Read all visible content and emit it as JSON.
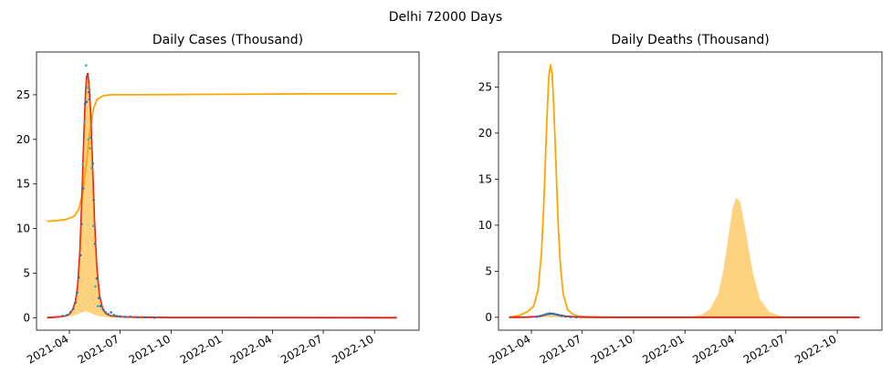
{
  "figure": {
    "suptitle": "Delhi 72000 Days"
  },
  "colors": {
    "orange": "#ffa500",
    "fill": "#ffa500",
    "red": "#ee1111",
    "blue": "#1f77b4",
    "cyan": "#17becf",
    "axes": "#000000"
  },
  "chart_data": [
    {
      "type": "line",
      "title": "Daily Cases (Thousand)",
      "xlabel": "",
      "ylabel": "",
      "xlim": [
        "2021-02-01",
        "2022-12-20"
      ],
      "ylim": [
        -1.4,
        29.8
      ],
      "x_ticks": [
        "2021-04-01",
        "2021-07-01",
        "2021-10-01",
        "2022-01-01",
        "2022-04-01",
        "2022-07-01",
        "2022-10-01"
      ],
      "x_tick_labels": [
        "2021-04",
        "2021-07",
        "2021-10",
        "2022-01",
        "2022-04",
        "2022-07",
        "2022-10"
      ],
      "y_ticks": [
        0,
        5,
        10,
        15,
        20,
        25
      ],
      "y_tick_labels": [
        "0",
        "5",
        "10",
        "15",
        "20",
        "25"
      ],
      "grid": false,
      "legend": "none",
      "series": [
        {
          "style": "line",
          "color": "orange",
          "x": [
            "2021-02-20",
            "2021-03-10",
            "2021-03-25",
            "2021-04-10",
            "2021-04-18",
            "2021-04-25",
            "2021-05-01",
            "2021-05-07",
            "2021-05-14",
            "2021-05-21",
            "2021-06-01",
            "2021-06-15",
            "2021-07-01",
            "2021-08-01",
            "2022-01-01",
            "2022-06-01",
            "2022-11-10"
          ],
          "y": [
            10.8,
            10.9,
            11.0,
            11.4,
            12.2,
            14.0,
            17.0,
            20.5,
            23.4,
            24.5,
            24.9,
            25.0,
            25.0,
            25.0,
            25.05,
            25.1,
            25.1
          ]
        },
        {
          "style": "line",
          "color": "red",
          "x": [
            "2021-02-20",
            "2021-03-15",
            "2021-03-25",
            "2021-04-01",
            "2021-04-07",
            "2021-04-12",
            "2021-04-16",
            "2021-04-20",
            "2021-04-24",
            "2021-04-27",
            "2021-04-30",
            "2021-05-02",
            "2021-05-04",
            "2021-05-06",
            "2021-05-09",
            "2021-05-12",
            "2021-05-16",
            "2021-05-20",
            "2021-05-25",
            "2021-05-31",
            "2021-06-07",
            "2021-06-15",
            "2021-07-01",
            "2021-08-01",
            "2021-10-01",
            "2022-11-10"
          ],
          "y": [
            0.0,
            0.1,
            0.2,
            0.4,
            0.9,
            1.8,
            3.5,
            7.5,
            14.0,
            20.0,
            25.0,
            27.0,
            27.4,
            26.4,
            23.0,
            18.0,
            11.0,
            5.8,
            2.5,
            0.9,
            0.4,
            0.2,
            0.1,
            0.05,
            0.02,
            0.0
          ]
        },
        {
          "style": "area",
          "color": "fill",
          "opacity": 0.5,
          "x": [
            "2021-02-20",
            "2021-03-15",
            "2021-03-25",
            "2021-04-01",
            "2021-04-07",
            "2021-04-12",
            "2021-04-16",
            "2021-04-20",
            "2021-04-24",
            "2021-04-27",
            "2021-04-30",
            "2021-05-02",
            "2021-05-04",
            "2021-05-06",
            "2021-05-09",
            "2021-05-12",
            "2021-05-16",
            "2021-05-20",
            "2021-05-25",
            "2021-05-31",
            "2021-06-07",
            "2021-06-15",
            "2021-07-01",
            "2021-08-01",
            "2021-10-01",
            "2022-11-10"
          ],
          "upper": [
            0.0,
            0.1,
            0.2,
            0.4,
            0.9,
            1.8,
            3.5,
            7.5,
            14.0,
            20.0,
            25.0,
            27.0,
            27.4,
            26.4,
            23.0,
            18.0,
            11.0,
            5.8,
            2.5,
            0.9,
            0.4,
            0.2,
            0.1,
            0.05,
            0.02,
            0.0
          ],
          "lower": [
            0.0,
            0.05,
            0.1,
            0.15,
            0.2,
            0.3,
            0.4,
            0.5,
            0.6,
            0.7,
            0.7,
            0.7,
            0.65,
            0.6,
            0.5,
            0.45,
            0.35,
            0.25,
            0.15,
            0.1,
            0.05,
            0.02,
            0.0,
            0.0,
            0.0,
            0.0
          ]
        },
        {
          "style": "points",
          "color": "cyan",
          "x": [
            "2021-04-25",
            "2021-04-28",
            "2021-05-01",
            "2021-05-03",
            "2021-05-05",
            "2021-05-08",
            "2021-05-11",
            "2021-05-14",
            "2021-05-18",
            "2021-05-22"
          ],
          "y": [
            17.2,
            22.0,
            28.3,
            25.8,
            20.0,
            19.0,
            16.8,
            10.3,
            3.5,
            1.3
          ]
        },
        {
          "style": "points",
          "color": "blue",
          "x": [
            "2021-03-20",
            "2021-03-28",
            "2021-04-03",
            "2021-04-08",
            "2021-04-12",
            "2021-04-15",
            "2021-04-18",
            "2021-04-21",
            "2021-04-23",
            "2021-04-26",
            "2021-04-29",
            "2021-05-02",
            "2021-05-04",
            "2021-05-06",
            "2021-05-07",
            "2021-05-10",
            "2021-05-13",
            "2021-05-15",
            "2021-05-17",
            "2021-05-20",
            "2021-05-24",
            "2021-05-27",
            "2021-06-01",
            "2021-06-05",
            "2021-06-10",
            "2021-06-15",
            "2021-06-20",
            "2021-06-25",
            "2021-07-01",
            "2021-07-10",
            "2021-07-20",
            "2021-08-01",
            "2021-08-15",
            "2021-09-01"
          ],
          "y": [
            0.2,
            0.3,
            0.6,
            1.0,
            1.7,
            2.8,
            4.5,
            7.0,
            10.5,
            14.5,
            24.0,
            24.2,
            27.0,
            25.3,
            24.5,
            20.2,
            17.3,
            13.2,
            8.3,
            4.4,
            2.2,
            1.3,
            0.9,
            0.6,
            0.4,
            0.6,
            0.3,
            0.2,
            0.15,
            0.1,
            0.1,
            0.05,
            0.05,
            0.0
          ]
        }
      ]
    },
    {
      "type": "line",
      "title": "Daily Deaths (Thousand)",
      "xlabel": "",
      "ylabel": "",
      "xlim": [
        "2021-02-01",
        "2022-12-20"
      ],
      "ylim": [
        -1.4,
        28.8
      ],
      "x_ticks": [
        "2021-04-01",
        "2021-07-01",
        "2021-10-01",
        "2022-01-01",
        "2022-04-01",
        "2022-07-01",
        "2022-10-01"
      ],
      "x_tick_labels": [
        "2021-04",
        "2021-07",
        "2021-10",
        "2022-01",
        "2022-04",
        "2022-07",
        "2022-10"
      ],
      "y_ticks": [
        0,
        5,
        10,
        15,
        20,
        25
      ],
      "y_tick_labels": [
        "0",
        "5",
        "10",
        "15",
        "20",
        "25"
      ],
      "grid": false,
      "legend": "none",
      "series": [
        {
          "style": "area",
          "color": "fill",
          "opacity": 0.5,
          "x": [
            "2021-02-20",
            "2021-04-01",
            "2021-04-20",
            "2021-05-05",
            "2021-05-20",
            "2021-06-10",
            "2021-07-01",
            "2021-08-01",
            "2021-12-01",
            "2022-01-15",
            "2022-02-01",
            "2022-02-15",
            "2022-03-01",
            "2022-03-10",
            "2022-03-20",
            "2022-03-27",
            "2022-04-03",
            "2022-04-10",
            "2022-04-20",
            "2022-05-01",
            "2022-05-15",
            "2022-06-01",
            "2022-06-20",
            "2022-07-15",
            "2022-11-10"
          ],
          "upper": [
            0.0,
            0.05,
            0.25,
            0.35,
            0.3,
            0.1,
            0.05,
            0.0,
            0.0,
            0.1,
            0.3,
            0.9,
            2.5,
            4.8,
            8.8,
            11.8,
            13.0,
            12.5,
            9.3,
            5.3,
            2.0,
            0.6,
            0.15,
            0.03,
            0.0
          ],
          "lower": [
            0.0,
            0.0,
            0.0,
            0.0,
            0.0,
            0.0,
            0.0,
            0.0,
            0.0,
            0.0,
            0.0,
            0.0,
            0.0,
            0.0,
            0.0,
            0.0,
            0.0,
            0.0,
            0.0,
            0.0,
            0.0,
            0.0,
            0.0,
            0.0,
            0.0
          ]
        },
        {
          "style": "line",
          "color": "orange",
          "x": [
            "2021-02-20",
            "2021-03-10",
            "2021-03-25",
            "2021-04-05",
            "2021-04-13",
            "2021-04-19",
            "2021-04-24",
            "2021-04-28",
            "2021-05-02",
            "2021-05-05",
            "2021-05-08",
            "2021-05-11",
            "2021-05-15",
            "2021-05-19",
            "2021-05-23",
            "2021-05-28",
            "2021-06-05",
            "2021-06-15",
            "2021-06-25",
            "2021-07-10",
            "2021-08-01",
            "2021-09-01",
            "2022-01-01",
            "2022-11-10"
          ],
          "y": [
            0.0,
            0.2,
            0.6,
            1.2,
            3.0,
            7.0,
            13.5,
            20.5,
            26.0,
            27.4,
            26.5,
            23.0,
            16.5,
            10.0,
            5.5,
            2.5,
            0.8,
            0.3,
            0.1,
            0.05,
            0.02,
            0.0,
            0.0,
            0.0
          ]
        },
        {
          "style": "line",
          "color": "red",
          "x": [
            "2021-02-20",
            "2021-03-25",
            "2021-04-10",
            "2021-04-20",
            "2021-04-28",
            "2021-05-05",
            "2021-05-12",
            "2021-05-20",
            "2021-06-01",
            "2021-06-15",
            "2021-07-01",
            "2021-08-01",
            "2022-11-10"
          ],
          "y": [
            0.0,
            0.02,
            0.08,
            0.18,
            0.3,
            0.38,
            0.35,
            0.25,
            0.12,
            0.05,
            0.02,
            0.0,
            0.0
          ]
        },
        {
          "style": "points",
          "color": "blue",
          "x": [
            "2021-04-10",
            "2021-04-16",
            "2021-04-22",
            "2021-04-26",
            "2021-04-30",
            "2021-05-04",
            "2021-05-08",
            "2021-05-12",
            "2021-05-16",
            "2021-05-20",
            "2021-05-25",
            "2021-06-01",
            "2021-06-10",
            "2021-06-20"
          ],
          "y": [
            0.05,
            0.12,
            0.22,
            0.3,
            0.38,
            0.42,
            0.4,
            0.35,
            0.3,
            0.22,
            0.14,
            0.08,
            0.04,
            0.02
          ]
        }
      ]
    }
  ]
}
